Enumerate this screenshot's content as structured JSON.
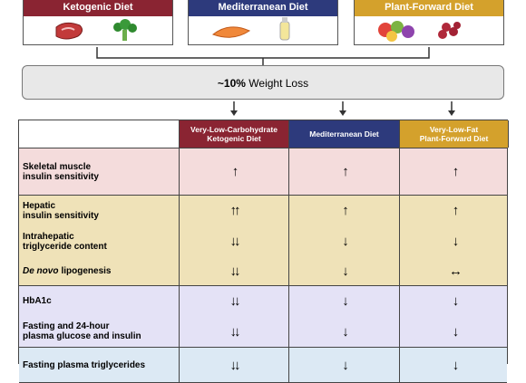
{
  "diets": [
    {
      "title": "Ketogenic Diet",
      "color": "#8a2432"
    },
    {
      "title": "Mediterranean Diet",
      "color": "#2d3a7c"
    },
    {
      "title": "Plant-Forward Diet",
      "color": "#d4a12c"
    }
  ],
  "weight_loss": {
    "bold": "~10%",
    "text": "Weight Loss"
  },
  "table": {
    "columns": [
      {
        "label": "Very-Low-Carbohydrate\nKetogenic Diet",
        "color": "#8a2432"
      },
      {
        "label": "Mediterranean Diet",
        "color": "#2d3a7c"
      },
      {
        "label": "Very-Low-Fat\nPlant-Forward Diet",
        "color": "#d4a12c"
      }
    ],
    "rows": [
      {
        "label": "Skeletal muscle\ninsulin sensitivity",
        "cells": [
          "↑",
          "↑",
          "↑"
        ],
        "bg": "#f4dcdc"
      },
      {
        "label": "Hepatic\ninsulin sensitivity",
        "cells": [
          "↑↑",
          "↑",
          "↑"
        ],
        "bg": "#efe2b8"
      },
      {
        "label": "Intrahepatic\ntriglyceride content",
        "cells": [
          "↓↓",
          "↓",
          "↓"
        ],
        "bg": "#efe2b8"
      },
      {
        "label_italic": "De novo",
        "label": "lipogenesis",
        "cells": [
          "↓↓",
          "↓",
          "↔"
        ],
        "bg": "#efe2b8"
      },
      {
        "label": "HbA1c",
        "cells": [
          "↓↓",
          "↓",
          "↓"
        ],
        "bg": "#e4e2f6"
      },
      {
        "label": "Fasting and 24-hour\nplasma glucose and insulin",
        "cells": [
          "↓↓",
          "↓",
          "↓"
        ],
        "bg": "#e4e2f6"
      },
      {
        "label": "Fasting plasma triglycerides",
        "cells": [
          "↓↓",
          "↓",
          "↓"
        ],
        "bg": "#dce9f4"
      }
    ]
  }
}
